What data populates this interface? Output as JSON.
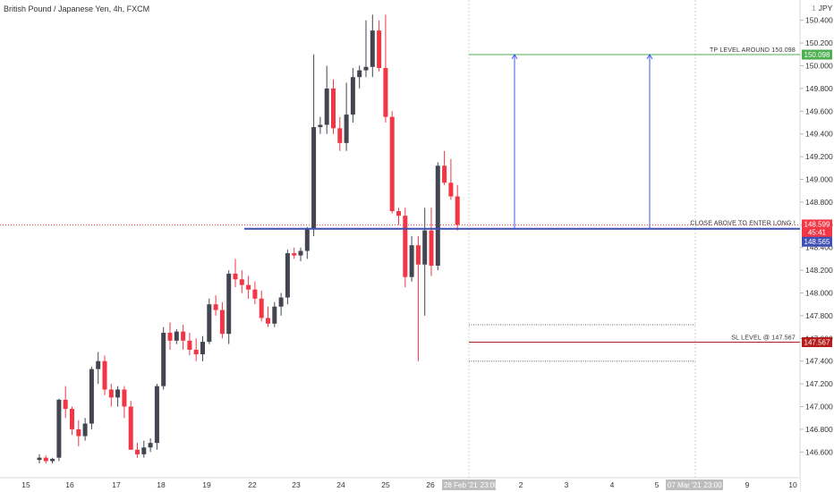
{
  "title": "British Pound / Japanese Yen, 4h, FXCM",
  "currency_label": "JPY",
  "annotations": {
    "tp_label": "TP LEVEL AROUND 150.098",
    "entry_label": "CLOSE ABOVE TO ENTER LONG !",
    "sl_label": "SL LEVEL @ 147.567"
  },
  "price_tags": {
    "tp": "150.098",
    "current": "148.599",
    "countdown": "45:41",
    "entry": "148.565",
    "sl": "147.567",
    "partial_hidden": "148.400",
    "partial_hidden_2": "147.600"
  },
  "date_tags": {
    "left": "28 Feb '21",
    "left_time": "23:00",
    "right": "07 Mar '21",
    "right_time": "23:00"
  },
  "colors": {
    "bull": "#434651",
    "bear": "#f23645",
    "tp": "#4caf50",
    "entry": "#3f51b5",
    "sl": "#b71c1c",
    "current": "#f23645",
    "arrow": "#3d5afe",
    "axis_text": "#333333"
  },
  "chart_data": {
    "type": "candlestick",
    "symbol": "GBPJPY",
    "timeframe": "4h",
    "ylim": [
      146.45,
      150.62
    ],
    "y_ticks": [
      "146.600",
      "146.800",
      "147.000",
      "147.200",
      "147.400",
      "147.600",
      "147.800",
      "148.000",
      "148.200",
      "148.400",
      "148.600",
      "148.800",
      "149.000",
      "149.200",
      "149.400",
      "149.600",
      "149.800",
      "150.000",
      "150.200",
      "150.400"
    ],
    "x_ticks": [
      "15",
      "16",
      "17",
      "18",
      "19",
      "22",
      "23",
      "24",
      "25",
      "26",
      "1",
      "2",
      "3",
      "4",
      "5",
      "8",
      "9",
      "10"
    ],
    "candles": [
      [
        146.53,
        146.58,
        146.5,
        146.55
      ],
      [
        146.55,
        146.57,
        146.5,
        146.52
      ],
      [
        146.52,
        146.55,
        146.5,
        146.54
      ],
      [
        146.55,
        147.07,
        146.52,
        147.06
      ],
      [
        147.06,
        147.18,
        146.9,
        146.98
      ],
      [
        146.98,
        147.0,
        146.75,
        146.8
      ],
      [
        146.8,
        146.88,
        146.65,
        146.74
      ],
      [
        146.74,
        146.9,
        146.7,
        146.85
      ],
      [
        146.85,
        147.35,
        146.8,
        147.33
      ],
      [
        147.33,
        147.48,
        147.2,
        147.4
      ],
      [
        147.4,
        147.45,
        147.1,
        147.15
      ],
      [
        147.15,
        147.2,
        147.0,
        147.08
      ],
      [
        147.08,
        147.18,
        147.0,
        147.15
      ],
      [
        147.15,
        147.18,
        146.9,
        147.0
      ],
      [
        147.0,
        147.05,
        146.65,
        146.62
      ],
      [
        146.62,
        146.68,
        146.55,
        146.58
      ],
      [
        146.58,
        146.7,
        146.55,
        146.64
      ],
      [
        146.64,
        146.72,
        146.6,
        146.68
      ],
      [
        146.68,
        147.2,
        146.62,
        147.18
      ],
      [
        147.18,
        147.7,
        147.15,
        147.65
      ],
      [
        147.65,
        147.74,
        147.5,
        147.58
      ],
      [
        147.58,
        147.68,
        147.55,
        147.66
      ],
      [
        147.66,
        147.72,
        147.5,
        147.58
      ],
      [
        147.58,
        147.65,
        147.45,
        147.5
      ],
      [
        147.5,
        147.6,
        147.4,
        147.46
      ],
      [
        147.46,
        147.62,
        147.4,
        147.57
      ],
      [
        147.57,
        147.95,
        147.55,
        147.9
      ],
      [
        147.9,
        147.98,
        147.8,
        147.85
      ],
      [
        147.85,
        147.92,
        147.6,
        147.64
      ],
      [
        147.64,
        148.2,
        147.55,
        148.17
      ],
      [
        148.17,
        148.3,
        148.05,
        148.12
      ],
      [
        148.12,
        148.2,
        148.0,
        148.07
      ],
      [
        148.07,
        148.15,
        147.95,
        148.03
      ],
      [
        148.03,
        148.1,
        147.9,
        147.95
      ],
      [
        147.95,
        148.02,
        147.75,
        147.78
      ],
      [
        147.78,
        147.88,
        147.7,
        147.73
      ],
      [
        147.73,
        147.92,
        147.7,
        147.88
      ],
      [
        147.88,
        148.0,
        147.8,
        147.96
      ],
      [
        147.96,
        148.38,
        147.9,
        148.35
      ],
      [
        148.35,
        148.4,
        148.3,
        148.33
      ],
      [
        148.33,
        148.4,
        148.28,
        148.37
      ],
      [
        148.37,
        148.58,
        148.3,
        148.56
      ],
      [
        148.56,
        150.1,
        148.5,
        149.46
      ],
      [
        149.46,
        149.55,
        149.4,
        149.48
      ],
      [
        149.48,
        150.0,
        149.4,
        149.8
      ],
      [
        149.8,
        149.88,
        149.4,
        149.45
      ],
      [
        149.45,
        149.55,
        149.25,
        149.32
      ],
      [
        149.32,
        149.85,
        149.25,
        149.57
      ],
      [
        149.57,
        149.98,
        149.5,
        149.9
      ],
      [
        149.9,
        150.0,
        149.8,
        149.96
      ],
      [
        149.96,
        150.4,
        149.9,
        149.99
      ],
      [
        149.99,
        150.45,
        149.9,
        150.31
      ],
      [
        150.31,
        150.4,
        149.95,
        149.98
      ],
      [
        149.98,
        150.45,
        149.5,
        149.55
      ],
      [
        149.55,
        149.6,
        148.7,
        148.72
      ],
      [
        148.72,
        148.75,
        148.6,
        148.68
      ],
      [
        148.68,
        148.75,
        148.05,
        148.14
      ],
      [
        148.14,
        148.5,
        148.1,
        148.42
      ],
      [
        148.42,
        148.5,
        147.4,
        148.25
      ],
      [
        148.25,
        148.75,
        147.8,
        148.55
      ],
      [
        148.55,
        148.75,
        148.15,
        148.24
      ],
      [
        148.24,
        149.15,
        148.2,
        149.12
      ],
      [
        149.12,
        149.25,
        148.95,
        148.97
      ],
      [
        148.97,
        149.18,
        148.82,
        148.85
      ],
      [
        148.85,
        148.95,
        148.55,
        148.6
      ]
    ]
  }
}
